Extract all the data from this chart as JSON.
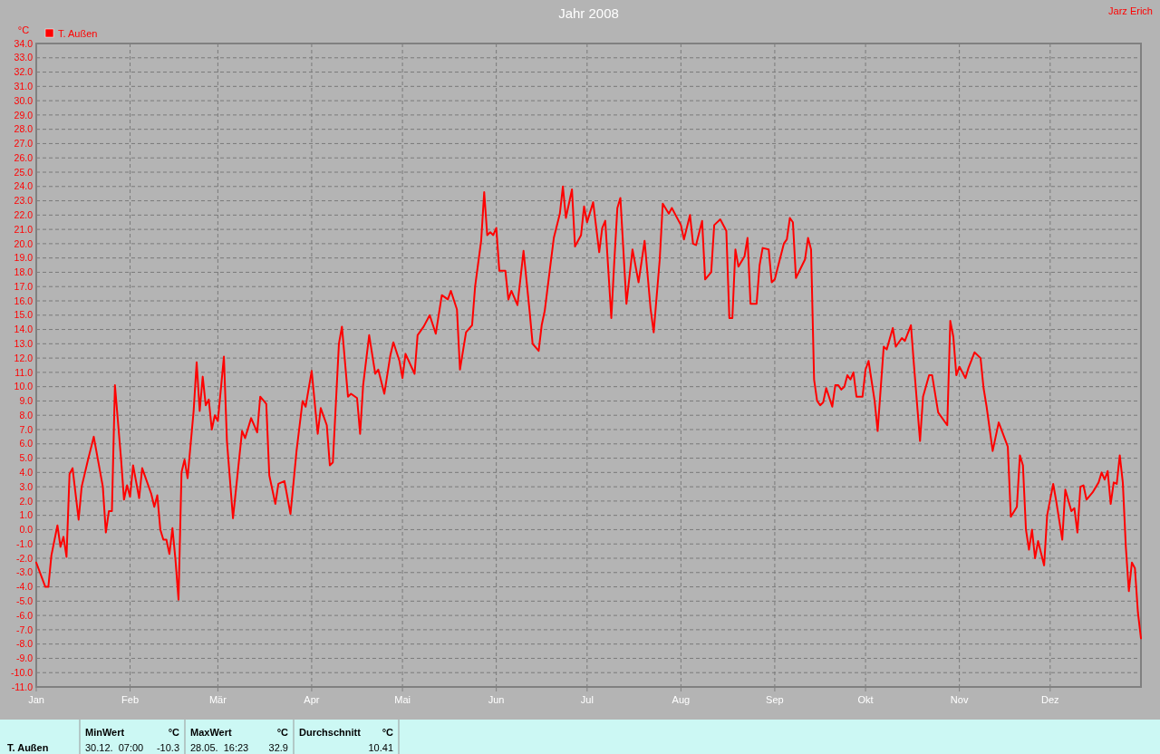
{
  "chart_data": {
    "type": "line",
    "title": "Jahr 2008",
    "ylabel": "°C",
    "legend": "top left",
    "grid": true,
    "line_style": "solid",
    "annotations": [
      "Jarz Erich",
      "MinWert",
      "°C",
      "30.12.  07:00",
      "-10.3",
      "MaxWert",
      "°C",
      "28.05.  16:23",
      "32.9",
      "Durchschnitt",
      "°C",
      "10.41"
    ],
    "xlim": [
      "2008-01-01",
      "2008-12-31"
    ],
    "xticks": [
      {
        "value": "2008-01-01",
        "label": "Jan"
      },
      {
        "value": "2008-02-01",
        "label": "Feb"
      },
      {
        "value": "2008-03-01",
        "label": "Mär"
      },
      {
        "value": "2008-04-01",
        "label": "Apr"
      },
      {
        "value": "2008-05-01",
        "label": "Mai"
      },
      {
        "value": "2008-06-01",
        "label": "Jun"
      },
      {
        "value": "2008-07-01",
        "label": "Jul"
      },
      {
        "value": "2008-08-01",
        "label": "Aug"
      },
      {
        "value": "2008-09-01",
        "label": "Sep"
      },
      {
        "value": "2008-10-01",
        "label": "Okt"
      },
      {
        "value": "2008-11-01",
        "label": "Nov"
      },
      {
        "value": "2008-12-01",
        "label": "Dez"
      }
    ],
    "ylim": [
      -11,
      34
    ],
    "yticks": [
      {
        "value": -11,
        "label": "-11.0"
      },
      {
        "value": -10,
        "label": "-10.0"
      },
      {
        "value": -9,
        "label": "-9.0"
      },
      {
        "value": -8,
        "label": "-8.0"
      },
      {
        "value": -7,
        "label": "-7.0"
      },
      {
        "value": -6,
        "label": "-6.0"
      },
      {
        "value": -5,
        "label": "-5.0"
      },
      {
        "value": -4,
        "label": "-4.0"
      },
      {
        "value": -3,
        "label": "-3.0"
      },
      {
        "value": -2,
        "label": "-2.0"
      },
      {
        "value": -1,
        "label": "-1.0"
      },
      {
        "value": 0,
        "label": "0.0"
      },
      {
        "value": 1,
        "label": "1.0"
      },
      {
        "value": 2,
        "label": "2.0"
      },
      {
        "value": 3,
        "label": "3.0"
      },
      {
        "value": 4,
        "label": "4.0"
      },
      {
        "value": 5,
        "label": "5.0"
      },
      {
        "value": 6,
        "label": "6.0"
      },
      {
        "value": 7,
        "label": "7.0"
      },
      {
        "value": 8,
        "label": "8.0"
      },
      {
        "value": 9,
        "label": "9.0"
      },
      {
        "value": 10,
        "label": "10.0"
      },
      {
        "value": 11,
        "label": "11.0"
      },
      {
        "value": 12,
        "label": "12.0"
      },
      {
        "value": 13,
        "label": "13.0"
      },
      {
        "value": 14,
        "label": "14.0"
      },
      {
        "value": 15,
        "label": "15.0"
      },
      {
        "value": 16,
        "label": "16.0"
      },
      {
        "value": 17,
        "label": "17.0"
      },
      {
        "value": 18,
        "label": "18.0"
      },
      {
        "value": 19,
        "label": "19.0"
      },
      {
        "value": 20,
        "label": "20.0"
      },
      {
        "value": 21,
        "label": "21.0"
      },
      {
        "value": 22,
        "label": "22.0"
      },
      {
        "value": 23,
        "label": "23.0"
      },
      {
        "value": 24,
        "label": "24.0"
      },
      {
        "value": 25,
        "label": "25.0"
      },
      {
        "value": 26,
        "label": "26.0"
      },
      {
        "value": 27,
        "label": "27.0"
      },
      {
        "value": 28,
        "label": "28.0"
      },
      {
        "value": 29,
        "label": "29.0"
      },
      {
        "value": 30,
        "label": "30.0"
      },
      {
        "value": 31,
        "label": "31.0"
      },
      {
        "value": 32,
        "label": "32.0"
      },
      {
        "value": 33,
        "label": "33.0"
      },
      {
        "value": 34,
        "label": "34.0"
      }
    ],
    "series": [
      {
        "name": "T. Außen",
        "color": "#ff0000",
        "x": [
          "2008-01-01",
          "2008-01-04",
          "2008-01-05",
          "2008-01-06",
          "2008-01-08",
          "2008-01-09",
          "2008-01-10",
          "2008-01-11",
          "2008-01-12",
          "2008-01-13",
          "2008-01-15",
          "2008-01-16",
          "2008-01-18",
          "2008-01-20",
          "2008-01-23",
          "2008-01-24",
          "2008-01-25",
          "2008-01-26",
          "2008-01-27",
          "2008-01-29",
          "2008-01-30",
          "2008-01-31",
          "2008-02-01",
          "2008-02-02",
          "2008-02-04",
          "2008-02-05",
          "2008-02-08",
          "2008-02-09",
          "2008-02-10",
          "2008-02-11",
          "2008-02-12",
          "2008-02-13",
          "2008-02-14",
          "2008-02-15",
          "2008-02-16",
          "2008-02-17",
          "2008-02-18",
          "2008-02-19",
          "2008-02-20",
          "2008-02-22",
          "2008-02-23",
          "2008-02-24",
          "2008-02-25",
          "2008-02-26",
          "2008-02-27",
          "2008-02-28",
          "2008-02-29",
          "2008-03-01",
          "2008-03-03",
          "2008-03-04",
          "2008-03-06",
          "2008-03-09",
          "2008-03-10",
          "2008-03-12",
          "2008-03-14",
          "2008-03-15",
          "2008-03-17",
          "2008-03-18",
          "2008-03-20",
          "2008-03-21",
          "2008-03-23",
          "2008-03-25",
          "2008-03-27",
          "2008-03-29",
          "2008-03-30",
          "2008-04-01",
          "2008-04-03",
          "2008-04-04",
          "2008-04-06",
          "2008-04-07",
          "2008-04-08",
          "2008-04-10",
          "2008-04-11",
          "2008-04-13",
          "2008-04-14",
          "2008-04-16",
          "2008-04-17",
          "2008-04-18",
          "2008-04-20",
          "2008-04-22",
          "2008-04-23",
          "2008-04-25",
          "2008-04-27",
          "2008-04-28",
          "2008-04-30",
          "2008-05-01",
          "2008-05-02",
          "2008-05-05",
          "2008-05-06",
          "2008-05-08",
          "2008-05-10",
          "2008-05-12",
          "2008-05-14",
          "2008-05-16",
          "2008-05-17",
          "2008-05-19",
          "2008-05-20",
          "2008-05-22",
          "2008-05-24",
          "2008-05-25",
          "2008-05-27",
          "2008-05-28",
          "2008-05-29",
          "2008-05-30",
          "2008-05-31",
          "2008-06-01",
          "2008-06-02",
          "2008-06-04",
          "2008-06-05",
          "2008-06-06",
          "2008-06-08",
          "2008-06-10",
          "2008-06-12",
          "2008-06-13",
          "2008-06-15",
          "2008-06-16",
          "2008-06-17",
          "2008-06-19",
          "2008-06-20",
          "2008-06-22",
          "2008-06-23",
          "2008-06-24",
          "2008-06-26",
          "2008-06-27",
          "2008-06-29",
          "2008-06-30",
          "2008-07-01",
          "2008-07-03",
          "2008-07-05",
          "2008-07-06",
          "2008-07-07",
          "2008-07-09",
          "2008-07-10",
          "2008-07-11",
          "2008-07-12",
          "2008-07-14",
          "2008-07-16",
          "2008-07-18",
          "2008-07-20",
          "2008-07-22",
          "2008-07-23",
          "2008-07-25",
          "2008-07-26",
          "2008-07-28",
          "2008-07-29",
          "2008-08-01",
          "2008-08-02",
          "2008-08-04",
          "2008-08-05",
          "2008-08-06",
          "2008-08-08",
          "2008-08-09",
          "2008-08-11",
          "2008-08-12",
          "2008-08-14",
          "2008-08-16",
          "2008-08-17",
          "2008-08-18",
          "2008-08-19",
          "2008-08-20",
          "2008-08-22",
          "2008-08-23",
          "2008-08-24",
          "2008-08-26",
          "2008-08-27",
          "2008-08-28",
          "2008-08-30",
          "2008-08-31",
          "2008-09-01",
          "2008-09-04",
          "2008-09-05",
          "2008-09-06",
          "2008-09-07",
          "2008-09-08",
          "2008-09-11",
          "2008-09-12",
          "2008-09-13",
          "2008-09-14",
          "2008-09-15",
          "2008-09-16",
          "2008-09-17",
          "2008-09-18",
          "2008-09-20",
          "2008-09-21",
          "2008-09-22",
          "2008-09-23",
          "2008-09-24",
          "2008-09-25",
          "2008-09-26",
          "2008-09-27",
          "2008-09-28",
          "2008-09-30",
          "2008-10-01",
          "2008-10-02",
          "2008-10-04",
          "2008-10-05",
          "2008-10-07",
          "2008-10-08",
          "2008-10-10",
          "2008-10-11",
          "2008-10-13",
          "2008-10-14",
          "2008-10-16",
          "2008-10-17",
          "2008-10-19",
          "2008-10-20",
          "2008-10-22",
          "2008-10-23",
          "2008-10-25",
          "2008-10-28",
          "2008-10-29",
          "2008-10-30",
          "2008-10-31",
          "2008-11-01",
          "2008-11-03",
          "2008-11-04",
          "2008-11-06",
          "2008-11-08",
          "2008-11-09",
          "2008-11-10",
          "2008-11-12",
          "2008-11-14",
          "2008-11-17",
          "2008-11-18",
          "2008-11-20",
          "2008-11-21",
          "2008-11-22",
          "2008-11-23",
          "2008-11-24",
          "2008-11-25",
          "2008-11-26",
          "2008-11-27",
          "2008-11-29",
          "2008-11-30",
          "2008-12-02",
          "2008-12-03",
          "2008-12-05",
          "2008-12-06",
          "2008-12-08",
          "2008-12-09",
          "2008-12-10",
          "2008-12-11",
          "2008-12-12",
          "2008-12-13",
          "2008-12-15",
          "2008-12-17",
          "2008-12-18",
          "2008-12-19",
          "2008-12-20",
          "2008-12-21",
          "2008-12-22",
          "2008-12-23",
          "2008-12-24",
          "2008-12-25",
          "2008-12-26",
          "2008-12-27",
          "2008-12-28",
          "2008-12-29",
          "2008-12-30",
          "2008-12-31"
        ],
        "values": [
          -2.3,
          -4.0,
          -4.0,
          -1.8,
          0.3,
          -1.2,
          -0.5,
          -1.9,
          3.9,
          4.3,
          0.7,
          3.0,
          4.8,
          6.5,
          3.0,
          -0.2,
          1.3,
          1.3,
          10.1,
          5.0,
          2.1,
          3.1,
          2.3,
          4.5,
          2.2,
          4.3,
          2.5,
          1.6,
          2.4,
          0.0,
          -0.7,
          -0.7,
          -1.7,
          0.1,
          -2.1,
          -4.9,
          4.0,
          4.9,
          3.6,
          8.3,
          11.7,
          8.3,
          10.7,
          8.7,
          9.1,
          7.0,
          8.0,
          7.6,
          12.1,
          6.2,
          0.8,
          6.9,
          6.4,
          7.8,
          6.8,
          9.3,
          8.8,
          3.8,
          1.8,
          3.2,
          3.4,
          1.1,
          5.5,
          9.0,
          8.6,
          11.1,
          6.7,
          8.5,
          7.3,
          4.5,
          4.7,
          13.0,
          14.2,
          9.3,
          9.5,
          9.2,
          6.7,
          10.1,
          13.6,
          10.9,
          11.2,
          9.5,
          12.2,
          13.1,
          11.8,
          10.6,
          12.3,
          10.9,
          13.6,
          14.2,
          15.0,
          13.7,
          16.4,
          16.1,
          16.7,
          15.4,
          11.2,
          13.8,
          14.3,
          17.0,
          20.2,
          23.6,
          20.6,
          20.8,
          20.6,
          21.1,
          18.1,
          18.1,
          16.1,
          16.7,
          15.7,
          19.5,
          15.3,
          13.0,
          12.5,
          14.3,
          15.3,
          18.7,
          20.4,
          22.1,
          24.0,
          21.8,
          23.8,
          19.8,
          20.6,
          22.6,
          21.5,
          22.9,
          19.4,
          21.1,
          21.6,
          14.8,
          18.8,
          22.5,
          23.2,
          15.8,
          19.6,
          17.3,
          20.2,
          15.4,
          13.8,
          18.9,
          22.8,
          22.1,
          22.5,
          21.3,
          20.3,
          22.0,
          20.0,
          19.9,
          21.6,
          17.5,
          18.0,
          21.3,
          21.7,
          20.9,
          14.8,
          14.8,
          19.6,
          18.4,
          19.1,
          20.4,
          15.8,
          15.8,
          18.5,
          19.7,
          19.6,
          17.3,
          17.5,
          20.0,
          20.3,
          21.8,
          21.5,
          17.6,
          18.9,
          20.4,
          19.6,
          10.5,
          9.0,
          8.7,
          8.9,
          9.9,
          8.6,
          10.1,
          10.1,
          9.8,
          10.0,
          10.8,
          10.5,
          11.0,
          9.3,
          9.3,
          11.2,
          11.8,
          9.0,
          6.9,
          12.8,
          12.6,
          14.1,
          12.8,
          13.4,
          13.2,
          14.3,
          11.5,
          6.2,
          9.3,
          10.8,
          10.8,
          8.2,
          7.3,
          14.6,
          13.5,
          10.8,
          11.4,
          10.6,
          11.3,
          12.4,
          12.0,
          9.9,
          8.6,
          5.5,
          7.5,
          5.8,
          0.9,
          1.6,
          5.2,
          4.5,
          0.0,
          -1.4,
          0.0,
          -2.0,
          -0.8,
          -2.5,
          1.0,
          3.2,
          2.0,
          -0.7,
          2.8,
          1.3,
          1.5,
          -0.2,
          3.0,
          3.1,
          2.1,
          2.6,
          3.3,
          4.0,
          3.5,
          4.1,
          1.8,
          3.3,
          3.2,
          5.2,
          3.3,
          -1.2,
          -4.3,
          -2.3,
          -2.7,
          -5.8,
          -7.6
        ]
      }
    ]
  }
}
